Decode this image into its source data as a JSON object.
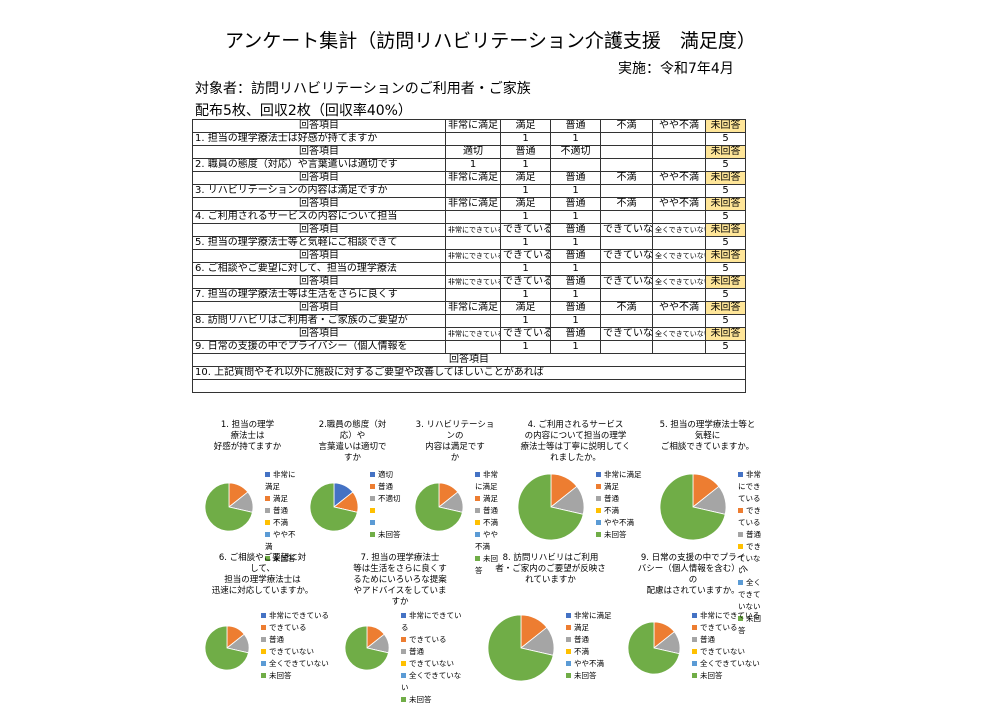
{
  "header": {
    "title": "アンケート集計（訪問リハビリテーション介護支援　満足度）",
    "date": "実施：令和7年4月",
    "target": "対象者：訪問リハビリテーションのご利用者・ご家族",
    "distribution": "配布5枚、回収2枚（回収率40%）"
  },
  "table": {
    "sections": [
      {
        "label": "回答項目",
        "columns": [
          "非常に満足",
          "満足",
          "普通",
          "不満",
          "やや不満",
          "未回答"
        ],
        "question": "1. 担当の理学療法士は好感が持てますか",
        "values": [
          null,
          1,
          1,
          null,
          null,
          5
        ]
      },
      {
        "label": "回答項目",
        "columns": [
          "適切",
          "普通",
          "不適切",
          null,
          null,
          "未回答"
        ],
        "question": "2. 職員の態度（対応）や言葉遣いは適切です",
        "values": [
          1,
          1,
          null,
          null,
          null,
          5
        ]
      },
      {
        "label": "回答項目",
        "columns": [
          "非常に満足",
          "満足",
          "普通",
          "不満",
          "やや不満",
          "未回答"
        ],
        "question": "3. リハビリテーションの内容は満足ですか",
        "values": [
          null,
          1,
          1,
          null,
          null,
          5
        ]
      },
      {
        "label": "回答項目",
        "columns": [
          "非常に満足",
          "満足",
          "普通",
          "不満",
          "やや不満",
          "未回答"
        ],
        "question": "4. ご利用されるサービスの内容について担当",
        "values": [
          null,
          1,
          1,
          null,
          null,
          5
        ]
      },
      {
        "label": "回答項目",
        "columns": [
          "非常にできている",
          "できている",
          "普通",
          "できていない",
          "全くできていない",
          "未回答"
        ],
        "question": "5. 担当の理学療法士等と気軽にご相談できて",
        "values": [
          null,
          1,
          1,
          null,
          null,
          5
        ]
      },
      {
        "label": "回答項目",
        "columns": [
          "非常にできている",
          "できている",
          "普通",
          "できていない",
          "全くできていない",
          "未回答"
        ],
        "question": "6. ご相談やご要望に対して、担当の理学療法",
        "values": [
          null,
          1,
          1,
          null,
          null,
          5
        ]
      },
      {
        "label": "回答項目",
        "columns": [
          "非常にできている",
          "できている",
          "普通",
          "できていない",
          "全くできていない",
          "未回答"
        ],
        "question": "7. 担当の理学療法士等は生活をさらに良くす",
        "values": [
          null,
          1,
          1,
          null,
          null,
          5
        ]
      },
      {
        "label": "回答項目",
        "columns": [
          "非常に満足",
          "満足",
          "普通",
          "不満",
          "やや不満",
          "未回答"
        ],
        "question": "8. 訪問リハビリはご利用者・ご家族のご要望が",
        "values": [
          null,
          1,
          1,
          null,
          null,
          5
        ]
      },
      {
        "label": "回答項目",
        "columns": [
          "非常にできている",
          "できている",
          "普通",
          "できていない",
          "全くできていない",
          "未回答"
        ],
        "question": "9. 日常の支援の中でプライバシー（個人情報を",
        "values": [
          null,
          1,
          1,
          null,
          null,
          5
        ]
      }
    ],
    "last": {
      "label": "回答項目",
      "question": "10. 上記質問やそれ以外に施設に対するご要望や改善してほしいことがあれば"
    }
  },
  "colors": [
    "#4472c4",
    "#ed7d31",
    "#a5a5a5",
    "#ffc000",
    "#5b9bd5",
    "#70ad47"
  ],
  "charts": [
    {
      "type": "pie",
      "title": "1. 担当の理学\n療法士は\n好感が持てますか",
      "categories": [
        "非常に満足",
        "満足",
        "普通",
        "不満",
        "やや不満",
        "未回答"
      ],
      "values": [
        0,
        1,
        1,
        0,
        0,
        5
      ]
    },
    {
      "type": "pie",
      "title": "2.職員の態度（対\n応）や\n言葉遣いは適切で\nすか",
      "categories": [
        "適切",
        "普通",
        "不適切",
        null,
        null,
        "未回答"
      ],
      "values": [
        1,
        1,
        0,
        0,
        0,
        5
      ]
    },
    {
      "type": "pie",
      "title": "3. リハビリテーショ\nンの\n内容は満足です\nか",
      "categories": [
        "非常に満足",
        "満足",
        "普通",
        "不満",
        "やや不満",
        "未回答"
      ],
      "values": [
        0,
        1,
        1,
        0,
        0,
        5
      ]
    },
    {
      "type": "pie",
      "title": "4. ご利用されるサービス\nの内容について担当の理学\n療法士等は丁寧に説明してく\nれましたか。",
      "categories": [
        "非常に満足",
        "満足",
        "普通",
        "不満",
        "やや不満",
        "未回答"
      ],
      "values": [
        0,
        1,
        1,
        0,
        0,
        5
      ]
    },
    {
      "type": "pie",
      "title": "5. 担当の理学療法士等と\n気軽に\nご相談できていますか。",
      "categories": [
        "非常にできている",
        "できている",
        "普通",
        "できていない",
        "全くできていない",
        "未回答"
      ],
      "values": [
        0,
        1,
        1,
        0,
        0,
        5
      ]
    },
    {
      "type": "pie",
      "title": "6. ご相談やご要望に対\nして、\n担当の理学療法士は\n迅速に対応していますか。",
      "categories": [
        "非常にできている",
        "できている",
        "普通",
        "できていない",
        "全くできていない",
        "未回答"
      ],
      "values": [
        0,
        1,
        1,
        0,
        0,
        5
      ]
    },
    {
      "type": "pie",
      "title": "7. 担当の理学療法士\n等は生活をさらに良くす\nるためにいろいろな提案\nやアドバイスをしていま\nすか",
      "categories": [
        "非常にできている",
        "できている",
        "普通",
        "できていない",
        "全くできていない",
        "未回答"
      ],
      "values": [
        0,
        1,
        1,
        0,
        0,
        5
      ]
    },
    {
      "type": "pie",
      "title": "8. 訪問リハビリはご利用\n者・ご家内のご要望が反映さ\nれていますか",
      "categories": [
        "非常に満足",
        "満足",
        "普通",
        "不満",
        "やや不満",
        "未回答"
      ],
      "values": [
        0,
        1,
        1,
        0,
        0,
        5
      ]
    },
    {
      "type": "pie",
      "title": "9. 日常の支援の中でプライ\nバシー（個人情報を含む）へ\nの\n配慮はされていますか。",
      "categories": [
        "非常にできている",
        "できている",
        "普通",
        "できていない",
        "全くできていない",
        "未回答"
      ],
      "values": [
        0,
        1,
        1,
        0,
        0,
        5
      ]
    }
  ]
}
